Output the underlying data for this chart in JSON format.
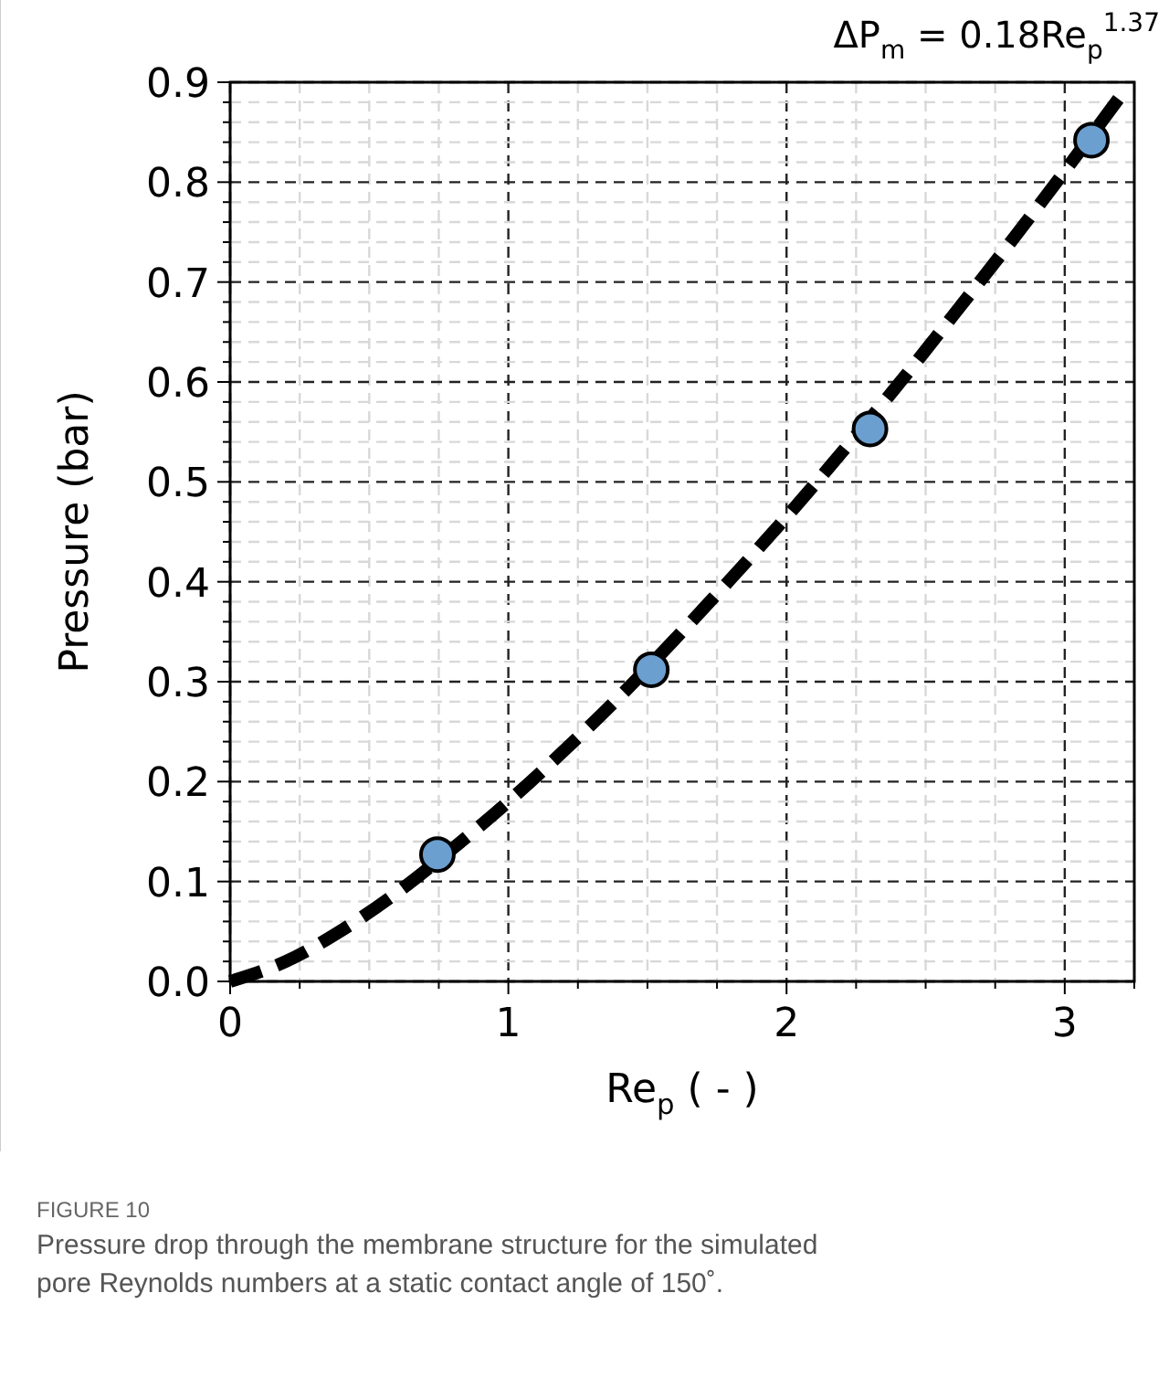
{
  "chart_data": {
    "type": "scatter",
    "xlabel": "Re$_{p}$ ( - )",
    "ylabel": "Pressure (bar)",
    "annotations": [
      "ΔP$_{m}$ = 0.18Re$_{p}$$^{1.37}$",
      "FIGURE 10",
      "Pressure drop through the membrane structure for the simulated pore Reynolds numbers at a static contact angle of 150˚."
    ],
    "xlim": [
      0,
      3.25
    ],
    "ylim": [
      0,
      0.9
    ],
    "xticks": [
      0,
      {
        "value": 0.25,
        "label": null
      },
      {
        "value": 0.5,
        "label": null
      },
      {
        "value": 0.75,
        "label": null
      },
      1,
      {
        "value": 1.25,
        "label": null
      },
      {
        "value": 1.5,
        "label": null
      },
      {
        "value": 1.75,
        "label": null
      },
      2,
      {
        "value": 2.25,
        "label": null
      },
      {
        "value": 2.5,
        "label": null
      },
      {
        "value": 2.75,
        "label": null
      },
      3,
      {
        "value": 3.25,
        "label": null
      }
    ],
    "yticks": [
      {
        "value": 0,
        "label": "0.0"
      },
      {
        "value": 0.02,
        "label": null
      },
      {
        "value": 0.04,
        "label": null
      },
      {
        "value": 0.06,
        "label": null
      },
      {
        "value": 0.08,
        "label": null
      },
      0.1,
      {
        "value": 0.12,
        "label": null
      },
      {
        "value": 0.14,
        "label": null
      },
      {
        "value": 0.16,
        "label": null
      },
      {
        "value": 0.18,
        "label": null
      },
      0.2,
      {
        "value": 0.22,
        "label": null
      },
      {
        "value": 0.24,
        "label": null
      },
      {
        "value": 0.26,
        "label": null
      },
      {
        "value": 0.28,
        "label": null
      },
      0.3,
      {
        "value": 0.32,
        "label": null
      },
      {
        "value": 0.34,
        "label": null
      },
      {
        "value": 0.36,
        "label": null
      },
      {
        "value": 0.38,
        "label": null
      },
      0.4,
      {
        "value": 0.42,
        "label": null
      },
      {
        "value": 0.44,
        "label": null
      },
      {
        "value": 0.46,
        "label": null
      },
      {
        "value": 0.48,
        "label": null
      },
      0.5,
      {
        "value": 0.52,
        "label": null
      },
      {
        "value": 0.54,
        "label": null
      },
      {
        "value": 0.56,
        "label": null
      },
      {
        "value": 0.58,
        "label": null
      },
      0.6,
      {
        "value": 0.62,
        "label": null
      },
      {
        "value": 0.64,
        "label": null
      },
      {
        "value": 0.66,
        "label": null
      },
      {
        "value": 0.68,
        "label": null
      },
      0.7,
      {
        "value": 0.72,
        "label": null
      },
      {
        "value": 0.74,
        "label": null
      },
      {
        "value": 0.76,
        "label": null
      },
      {
        "value": 0.78,
        "label": null
      },
      0.8,
      {
        "value": 0.82,
        "label": null
      },
      {
        "value": 0.84,
        "label": null
      },
      {
        "value": 0.86,
        "label": null
      },
      {
        "value": 0.88,
        "label": null
      },
      0.9
    ],
    "grid": true,
    "series": [
      {
        "type": "line",
        "color": "#000000",
        "line_style": "dashed",
        "marker": "none",
        "x": [
          0,
          0.2,
          0.4,
          0.6,
          0.8,
          1.0,
          1.2,
          1.4,
          1.6,
          1.8,
          2.0,
          2.2,
          2.4,
          2.6,
          2.8,
          3.0,
          3.2
        ],
        "values": [
          0,
          0.02,
          0.051,
          0.089,
          0.133,
          0.18,
          0.231,
          0.285,
          0.343,
          0.403,
          0.465,
          0.53,
          0.597,
          0.667,
          0.738,
          0.811,
          0.886
        ]
      },
      {
        "color": "#6b9fcf",
        "marker": "circle",
        "x": [
          0.745,
          1.514,
          2.3,
          3.096
        ],
        "values": [
          0.127,
          0.312,
          0.553,
          0.842
        ]
      }
    ]
  }
}
